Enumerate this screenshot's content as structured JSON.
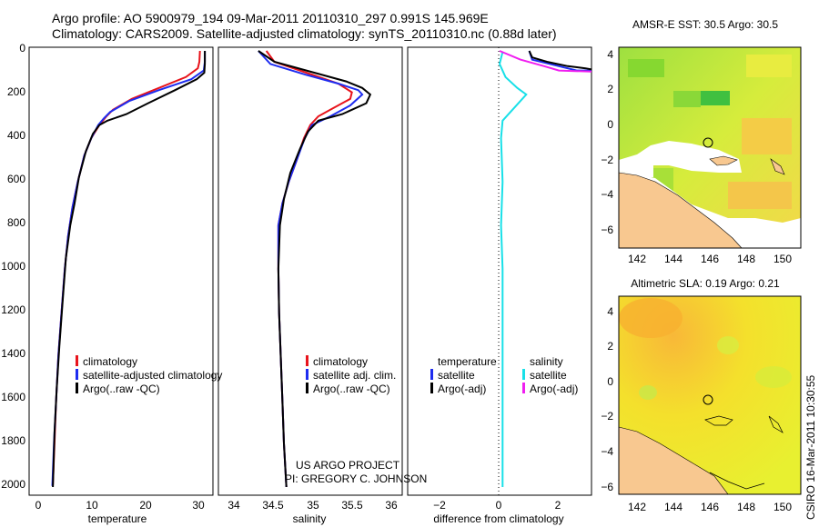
{
  "header": {
    "line1": "Argo profile: AO 5900979_194 09-Mar-2011 20110310_297 0.991S 145.969E",
    "line2": "Climatology: CARS2009. Satellite-adjusted climatology: synTS_20110310.nc (0.88d later)"
  },
  "colors": {
    "climatology": "#e8141c",
    "satellite": "#1e2cf0",
    "argo": "#000000",
    "cyan": "#18e0e8",
    "magenta": "#f01ef0",
    "land": "#f8c890"
  },
  "chart_data": [
    {
      "type": "line",
      "panel": "temperature",
      "xlabel": "temperature",
      "xlim": [
        -2,
        32
      ],
      "ylim": [
        2050,
        0
      ],
      "x_ticks": [
        0,
        10,
        20,
        30
      ],
      "y_ticks": [
        0,
        200,
        400,
        600,
        800,
        1000,
        1200,
        1400,
        1600,
        1800,
        2000
      ],
      "legend_position": "lower-right",
      "series": [
        {
          "name": "climatology",
          "color": "#e8141c",
          "points": [
            [
              29.6,
              0
            ],
            [
              29.5,
              50
            ],
            [
              29.2,
              80
            ],
            [
              27,
              120
            ],
            [
              22,
              170
            ],
            [
              17,
              220
            ],
            [
              13.5,
              270
            ],
            [
              12.3,
              300
            ],
            [
              11,
              340
            ],
            [
              9.5,
              400
            ],
            [
              8.2,
              480
            ],
            [
              7,
              600
            ],
            [
              6,
              720
            ],
            [
              5.2,
              850
            ],
            [
              4.6,
              1000
            ],
            [
              4,
              1200
            ],
            [
              3.4,
              1400
            ],
            [
              3,
              1600
            ],
            [
              2.7,
              1800
            ],
            [
              2.4,
              1990
            ]
          ]
        },
        {
          "name": "satellite-adjusted climatology",
          "color": "#1e2cf0",
          "points": [
            [
              30.5,
              0
            ],
            [
              30.5,
              50
            ],
            [
              30.3,
              90
            ],
            [
              28,
              130
            ],
            [
              22,
              180
            ],
            [
              16.5,
              230
            ],
            [
              13,
              280
            ],
            [
              11.8,
              310
            ],
            [
              10.8,
              340
            ],
            [
              9.5,
              400
            ],
            [
              8.2,
              480
            ],
            [
              7,
              600
            ],
            [
              6,
              720
            ],
            [
              5.2,
              850
            ],
            [
              4.6,
              1000
            ],
            [
              4,
              1200
            ],
            [
              3.4,
              1400
            ],
            [
              3,
              1600
            ],
            [
              2.6,
              1800
            ],
            [
              2.3,
              1995
            ]
          ]
        },
        {
          "name": "Argo(..raw -QC)",
          "color": "#000000",
          "points": [
            [
              30.5,
              0
            ],
            [
              30.5,
              60
            ],
            [
              30.4,
              100
            ],
            [
              29,
              130
            ],
            [
              25,
              180
            ],
            [
              20,
              240
            ],
            [
              16,
              290
            ],
            [
              12.5,
              320
            ],
            [
              11,
              340
            ],
            [
              9.8,
              380
            ],
            [
              8.5,
              460
            ],
            [
              7.2,
              580
            ],
            [
              6.4,
              700
            ],
            [
              5.6,
              800
            ],
            [
              4.8,
              950
            ],
            [
              4.2,
              1150
            ],
            [
              3.6,
              1350
            ],
            [
              3.1,
              1550
            ],
            [
              2.7,
              1750
            ],
            [
              2.4,
              2000
            ]
          ]
        }
      ]
    },
    {
      "type": "line",
      "panel": "salinity",
      "xlabel": "salinity",
      "xlim": [
        33.8,
        36.1
      ],
      "ylim": [
        2050,
        0
      ],
      "x_ticks": [
        34,
        34.5,
        35,
        35.5,
        36
      ],
      "legend_position": "lower-right",
      "series": [
        {
          "name": "climatology",
          "color": "#e8141c",
          "points": [
            [
              34.4,
              0
            ],
            [
              34.5,
              50
            ],
            [
              34.9,
              100
            ],
            [
              35.3,
              150
            ],
            [
              35.47,
              190
            ],
            [
              35.45,
              220
            ],
            [
              35.25,
              260
            ],
            [
              35.05,
              300
            ],
            [
              34.95,
              340
            ],
            [
              34.87,
              400
            ],
            [
              34.78,
              500
            ],
            [
              34.68,
              600
            ],
            [
              34.6,
              700
            ],
            [
              34.55,
              800
            ],
            [
              34.55,
              1000
            ],
            [
              34.56,
              1200
            ],
            [
              34.58,
              1400
            ],
            [
              34.6,
              1600
            ],
            [
              34.62,
              1800
            ],
            [
              34.65,
              2000
            ]
          ]
        },
        {
          "name": "satellite adj. clim.",
          "color": "#1e2cf0",
          "points": [
            [
              34.3,
              0
            ],
            [
              34.45,
              60
            ],
            [
              34.9,
              110
            ],
            [
              35.3,
              150
            ],
            [
              35.55,
              180
            ],
            [
              35.6,
              200
            ],
            [
              35.45,
              250
            ],
            [
              35.2,
              300
            ],
            [
              34.97,
              340
            ],
            [
              34.88,
              400
            ],
            [
              34.78,
              500
            ],
            [
              34.68,
              600
            ],
            [
              34.6,
              700
            ],
            [
              34.55,
              800
            ],
            [
              34.55,
              1000
            ],
            [
              34.56,
              1200
            ],
            [
              34.58,
              1400
            ],
            [
              34.6,
              1600
            ],
            [
              34.62,
              1800
            ],
            [
              34.65,
              2000
            ]
          ]
        },
        {
          "name": "Argo(..raw -QC)",
          "color": "#000000",
          "points": [
            [
              34.3,
              0
            ],
            [
              34.5,
              50
            ],
            [
              35,
              100
            ],
            [
              35.4,
              140
            ],
            [
              35.6,
              170
            ],
            [
              35.7,
              200
            ],
            [
              35.65,
              240
            ],
            [
              35.35,
              290
            ],
            [
              35.05,
              320
            ],
            [
              34.92,
              370
            ],
            [
              34.82,
              450
            ],
            [
              34.7,
              560
            ],
            [
              34.62,
              680
            ],
            [
              34.57,
              800
            ],
            [
              34.55,
              1000
            ],
            [
              34.56,
              1200
            ],
            [
              34.58,
              1400
            ],
            [
              34.6,
              1600
            ],
            [
              34.62,
              1800
            ],
            [
              34.65,
              2000
            ]
          ]
        }
      ]
    },
    {
      "type": "line",
      "panel": "difference",
      "xlabel": "difference from climatology",
      "xlim": [
        -3.2,
        3
      ],
      "ylim": [
        2050,
        0
      ],
      "x_ticks": [
        -2,
        0,
        2
      ],
      "legend_groups": [
        {
          "title": "temperature",
          "items": [
            {
              "name": "satellite",
              "color": "#1e2cf0"
            },
            {
              "name": "Argo(-adj)",
              "color": "#000000"
            }
          ]
        },
        {
          "title": "salinity",
          "items": [
            {
              "name": "satellite",
              "color": "#18e0e8"
            },
            {
              "name": "Argo(-adj)",
              "color": "#f01ef0"
            }
          ]
        }
      ],
      "series": [
        {
          "name": "temperature satellite",
          "color": "#1e2cf0",
          "points": [
            [
              0.9,
              0
            ],
            [
              1.0,
              40
            ],
            [
              1.9,
              70
            ],
            [
              2.5,
              90
            ],
            [
              3,
              90
            ]
          ]
        },
        {
          "name": "temperature Argo(-adj)",
          "color": "#000000",
          "points": [
            [
              0.9,
              0
            ],
            [
              1,
              30
            ],
            [
              1.5,
              50
            ],
            [
              2.2,
              70
            ],
            [
              2.8,
              80
            ],
            [
              3,
              85
            ]
          ]
        },
        {
          "name": "salinity satellite",
          "color": "#18e0e8",
          "points": [
            [
              0,
              5
            ],
            [
              -0.1,
              60
            ],
            [
              0.1,
              120
            ],
            [
              0.5,
              170
            ],
            [
              0.8,
              200
            ],
            [
              0.4,
              260
            ],
            [
              0,
              320
            ],
            [
              -0.05,
              400
            ],
            [
              0,
              600
            ],
            [
              -0.05,
              800
            ],
            [
              0,
              1000
            ],
            [
              0,
              1400
            ],
            [
              0,
              2000
            ]
          ]
        },
        {
          "name": "salinity Argo(-adj)",
          "color": "#f01ef0",
          "points": [
            [
              -0.1,
              0
            ],
            [
              0.6,
              40
            ],
            [
              1.4,
              70
            ],
            [
              1.9,
              90
            ],
            [
              3,
              95
            ]
          ]
        }
      ]
    },
    {
      "type": "heatmap",
      "panel": "amsre-sst",
      "title": "AMSR-E SST: 30.5 Argo: 30.5",
      "xlim": [
        141,
        151
      ],
      "ylim": [
        -7,
        5
      ],
      "x_ticks": [
        142,
        144,
        146,
        148,
        150
      ],
      "y_ticks": [
        -6,
        -4,
        -2,
        0,
        2,
        4
      ],
      "profile_location": [
        146.0,
        -1.0
      ]
    },
    {
      "type": "heatmap",
      "panel": "altimetric-sla",
      "title": "Altimetric SLA: 0.19 Argo: 0.21",
      "xlim": [
        141,
        151
      ],
      "ylim": [
        -7,
        5
      ],
      "x_ticks": [
        142,
        144,
        146,
        148,
        150
      ],
      "y_ticks": [
        -6,
        -4,
        -2,
        0,
        2,
        4
      ],
      "profile_location": [
        146.0,
        -1.0
      ]
    }
  ],
  "annotations": {
    "project_line1": "US ARGO PROJECT",
    "project_line2": "PI: GREGORY C. JOHNSON",
    "credit": "CSIRO 16-Mar-2011 10:30:55"
  }
}
